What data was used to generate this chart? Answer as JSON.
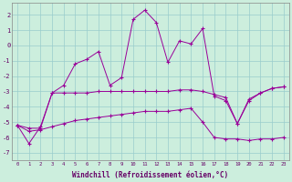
{
  "title": "",
  "xlabel": "Windchill (Refroidissement éolien,°C)",
  "ylabel": "",
  "background_color": "#cceedd",
  "grid_color": "#99cccc",
  "line_color": "#990099",
  "xlim": [
    -0.5,
    23.5
  ],
  "ylim": [
    -7.5,
    2.8
  ],
  "yticks": [
    -7,
    -6,
    -5,
    -4,
    -3,
    -2,
    -1,
    0,
    1,
    2
  ],
  "xticks": [
    0,
    1,
    2,
    3,
    4,
    5,
    6,
    7,
    8,
    9,
    10,
    11,
    12,
    13,
    14,
    15,
    16,
    17,
    18,
    19,
    20,
    21,
    22,
    23
  ],
  "line1_x": [
    0,
    1,
    2,
    3,
    4,
    5,
    6,
    7,
    8,
    9,
    10,
    11,
    12,
    13,
    14,
    15,
    16,
    17,
    18,
    19,
    20,
    21,
    22,
    23
  ],
  "line1_y": [
    -5.2,
    -6.4,
    -5.3,
    -3.1,
    -2.6,
    -1.2,
    -0.9,
    -0.4,
    -2.6,
    -2.1,
    1.7,
    2.3,
    1.5,
    -1.1,
    0.3,
    0.1,
    1.1,
    -3.3,
    -3.6,
    -5.1,
    -3.5,
    -3.1,
    -2.8,
    -2.7
  ],
  "line2_x": [
    0,
    1,
    2,
    3,
    4,
    5,
    6,
    7,
    8,
    9,
    10,
    11,
    12,
    13,
    14,
    15,
    16,
    17,
    18,
    19,
    20,
    21,
    22,
    23
  ],
  "line2_y": [
    -5.2,
    -5.4,
    -5.4,
    -3.1,
    -3.1,
    -3.1,
    -3.1,
    -3.0,
    -3.0,
    -3.0,
    -3.0,
    -3.0,
    -3.0,
    -3.0,
    -2.9,
    -2.9,
    -3.0,
    -3.2,
    -3.4,
    -5.1,
    -3.6,
    -3.1,
    -2.8,
    -2.7
  ],
  "line3_x": [
    0,
    1,
    2,
    3,
    4,
    5,
    6,
    7,
    8,
    9,
    10,
    11,
    12,
    13,
    14,
    15,
    16,
    17,
    18,
    19,
    20,
    21,
    22,
    23
  ],
  "line3_y": [
    -5.2,
    -5.6,
    -5.5,
    -5.3,
    -5.1,
    -4.9,
    -4.8,
    -4.7,
    -4.6,
    -4.5,
    -4.4,
    -4.3,
    -4.3,
    -4.3,
    -4.2,
    -4.1,
    -5.0,
    -6.0,
    -6.1,
    -6.1,
    -6.2,
    -6.1,
    -6.1,
    -6.0
  ]
}
